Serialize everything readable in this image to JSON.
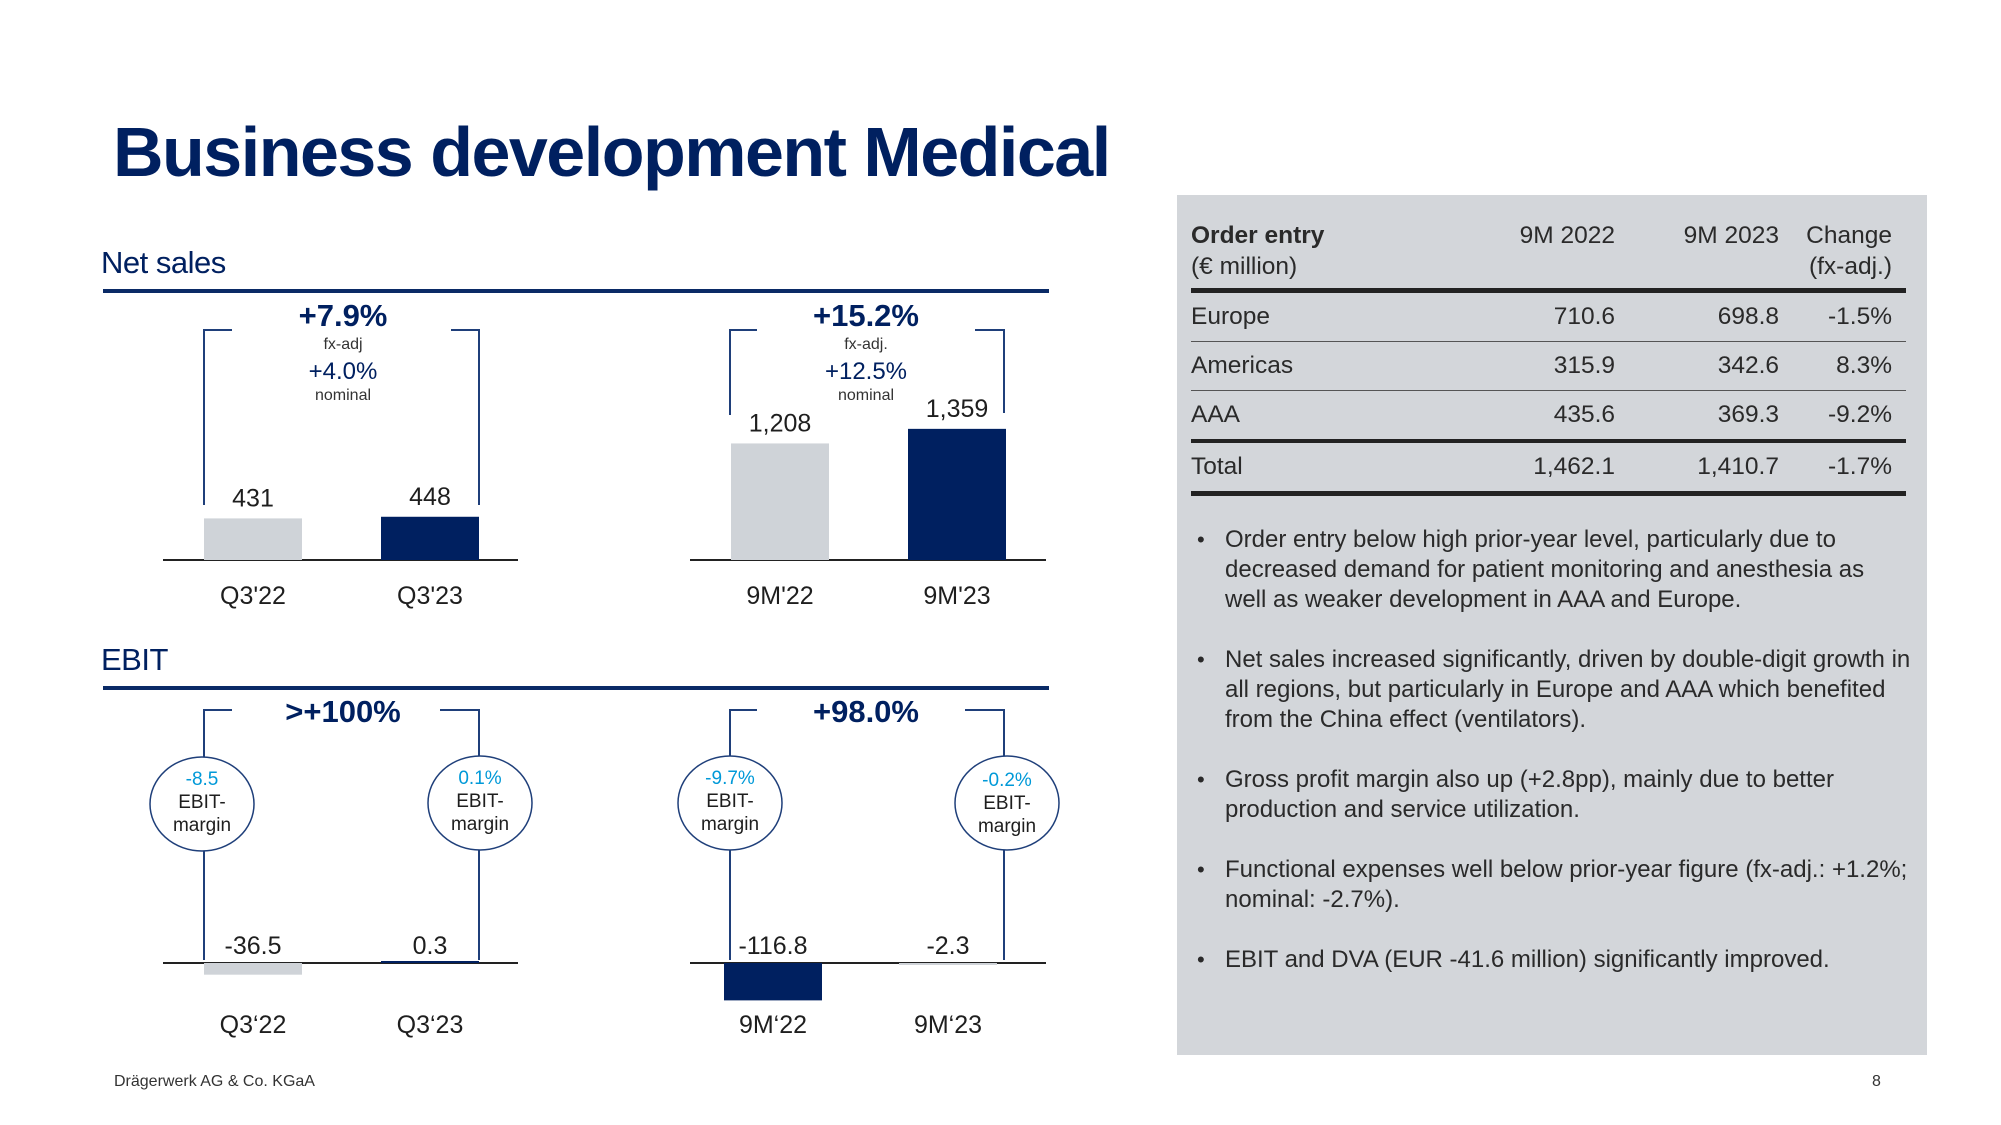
{
  "title": "Business development Medical",
  "colors": {
    "navy": "#002060",
    "light_gray": "#cfd3d8",
    "cyan": "#0099d8",
    "panel": "#d3d6da"
  },
  "net_sales": {
    "heading": "Net sales",
    "left_group": {
      "change_main": "+7.9%",
      "change_main_note": "fx-adj",
      "change_second": "+4.0%",
      "change_second_note": "nominal"
    },
    "right_group": {
      "change_main": "+15.2%",
      "change_main_note": "fx-adj.",
      "change_second": "+12.5%",
      "change_second_note": "nominal"
    }
  },
  "ebit": {
    "heading": "EBIT",
    "left_group": {
      "change": ">+100%"
    },
    "right_group": {
      "change": "+98.0%"
    },
    "margins": [
      {
        "value": "-8.5",
        "line1": "EBIT-",
        "line2": "margin"
      },
      {
        "value": "0.1%",
        "line1": "EBIT-",
        "line2": "margin"
      },
      {
        "value": "-9.7%",
        "line1": "EBIT-",
        "line2": "margin"
      },
      {
        "value": "-0.2%",
        "line1": "EBIT-",
        "line2": "margin"
      }
    ]
  },
  "chart_data": [
    {
      "type": "bar",
      "title": "Net sales",
      "categories": [
        "Q3'22",
        "Q3'23"
      ],
      "values": [
        431,
        448
      ],
      "value_labels": [
        "431",
        "448"
      ],
      "ylim": [
        0,
        1400
      ],
      "colors": [
        "#cfd3d8",
        "#002060"
      ]
    },
    {
      "type": "bar",
      "title": "Net sales",
      "categories": [
        "9M'22",
        "9M'23"
      ],
      "values": [
        1208,
        1359
      ],
      "value_labels": [
        "1,208",
        "1,359"
      ],
      "ylim": [
        0,
        1400
      ],
      "colors": [
        "#cfd3d8",
        "#002060"
      ]
    },
    {
      "type": "bar",
      "title": "EBIT",
      "categories": [
        "Q3‘22",
        "Q3‘23"
      ],
      "values": [
        -36.5,
        0.3
      ],
      "value_labels": [
        "-36.5",
        "0.3"
      ],
      "colors": [
        "#cfd3d8",
        "#002060"
      ]
    },
    {
      "type": "bar",
      "title": "EBIT",
      "categories": [
        "9M‘22",
        "9M‘23"
      ],
      "values": [
        -116.8,
        -2.3
      ],
      "value_labels": [
        "-116.8",
        "-2.3"
      ],
      "colors": [
        "#002060",
        "#cfd3d8"
      ]
    }
  ],
  "order_entry": {
    "header": {
      "label_bold": "Order entry",
      "label_unit": "(€ million)",
      "col1": "9M 2022",
      "col2": "9M 2023",
      "col3_line1": "Change",
      "col3_line2": "(fx-adj.)"
    },
    "rows": [
      {
        "region": "Europe",
        "v2022": "710.6",
        "v2023": "698.8",
        "change": "-1.5%"
      },
      {
        "region": "Americas",
        "v2022": "315.9",
        "v2023": "342.6",
        "change": "8.3%"
      },
      {
        "region": "AAA",
        "v2022": "435.6",
        "v2023": "369.3",
        "change": "-9.2%"
      },
      {
        "region": "Total",
        "v2022": "1,462.1",
        "v2023": "1,410.7",
        "change": "-1.7%"
      }
    ]
  },
  "bullets": [
    "Order entry below high prior-year level, particularly due to decreased demand for patient monitoring and anesthesia as well as weaker development in AAA and Europe.",
    "Net sales increased significantly, driven by double-digit growth in all regions, but particularly in Europe and AAA which benefited from the China effect (ventilators).",
    "Gross profit margin also up (+2.8pp), mainly due to better production and service utilization.",
    "Functional expenses well below prior-year figure (fx-adj.: +1.2%; nominal: -2.7%).",
    "EBIT and DVA (EUR -41.6 million) significantly improved."
  ],
  "footer": {
    "company": "Drägerwerk AG & Co. KGaA",
    "page": "8"
  }
}
